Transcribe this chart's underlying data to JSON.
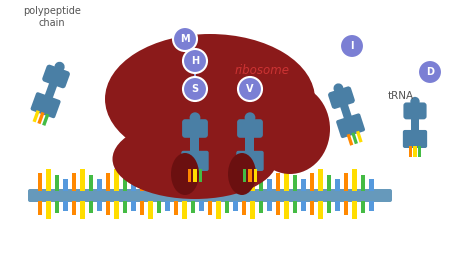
{
  "background_color": "#ffffff",
  "ribosome_color": "#8B1A1A",
  "ribosome_shadow": "#6b1010",
  "trna_color": "#4a7fa5",
  "trna_dark": "#3a6080",
  "aa_color": "#7b7fd4",
  "aa_border": "#ffffff",
  "mrna_backbone_color": "#6699bb",
  "link_color": "#a0a8e0",
  "label_color": "#555555",
  "ribosome_text_color": "#cc3333",
  "codon_colors": [
    "#ff8800",
    "#ffdd00",
    "#44bb44",
    "#5599dd"
  ],
  "labels": {
    "polypeptide": "polypeptide\nchain",
    "ribosome": "ribosome",
    "tRNA": "tRNA",
    "M": "M",
    "H": "H",
    "S": "S",
    "V": "V",
    "I": "I",
    "D": "D"
  }
}
